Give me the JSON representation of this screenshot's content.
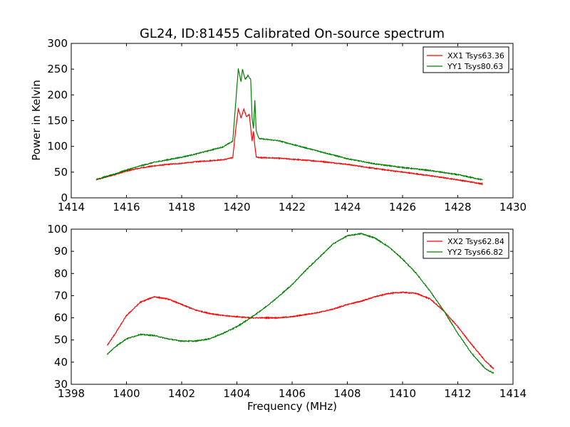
{
  "figure": {
    "title": "GL24, ID:81455 Calibrated On-source spectrum",
    "top_ylabel": "Power in Kelvin",
    "bottom_xlabel": "Frequency (MHz)"
  },
  "chart_data": [
    {
      "type": "line",
      "title": "GL24, ID:81455 Calibrated On-source spectrum",
      "xlabel": "",
      "ylabel": "Power in Kelvin",
      "xlim": [
        1414,
        1430
      ],
      "ylim": [
        0,
        300
      ],
      "xticks": [
        1414,
        1416,
        1418,
        1420,
        1422,
        1424,
        1426,
        1428,
        1430
      ],
      "yticks": [
        0,
        50,
        100,
        150,
        200,
        250,
        300
      ],
      "legend_position": "top-right",
      "grid": false,
      "series": [
        {
          "name": "XX1 Tsys63.36",
          "color": "#ff0000",
          "x": [
            1414.9,
            1415.5,
            1416.0,
            1416.5,
            1417.0,
            1417.5,
            1418.0,
            1418.5,
            1419.0,
            1419.5,
            1419.85,
            1419.95,
            1420.05,
            1420.15,
            1420.25,
            1420.35,
            1420.45,
            1420.55,
            1420.6,
            1420.65,
            1420.7,
            1420.8,
            1421.0,
            1421.5,
            1422.0,
            1423.0,
            1424.0,
            1425.0,
            1426.0,
            1427.0,
            1428.0,
            1428.9
          ],
          "y": [
            35,
            44,
            52,
            58,
            62,
            65,
            67,
            70,
            72,
            74,
            78,
            130,
            173,
            155,
            172,
            158,
            162,
            110,
            130,
            100,
            80,
            78,
            78,
            77,
            75,
            71,
            65,
            57,
            50,
            43,
            35,
            27
          ]
        },
        {
          "name": "YY1 Tsys80.63",
          "color": "#008000",
          "x": [
            1414.9,
            1415.5,
            1416.0,
            1416.5,
            1417.0,
            1417.5,
            1418.0,
            1418.5,
            1419.0,
            1419.5,
            1419.85,
            1419.95,
            1420.05,
            1420.15,
            1420.2,
            1420.3,
            1420.4,
            1420.5,
            1420.55,
            1420.6,
            1420.65,
            1420.7,
            1420.8,
            1421.0,
            1421.5,
            1422.0,
            1423.0,
            1424.0,
            1425.0,
            1426.0,
            1427.0,
            1428.0,
            1428.9
          ],
          "y": [
            36,
            45,
            54,
            62,
            69,
            74,
            79,
            85,
            92,
            99,
            110,
            180,
            251,
            225,
            250,
            230,
            238,
            230,
            155,
            135,
            190,
            130,
            115,
            114,
            111,
            104,
            90,
            76,
            66,
            59,
            53,
            45,
            35
          ]
        }
      ]
    },
    {
      "type": "line",
      "title": "",
      "xlabel": "Frequency (MHz)",
      "ylabel": "",
      "xlim": [
        1398,
        1414
      ],
      "ylim": [
        30,
        100
      ],
      "xticks": [
        1398,
        1400,
        1402,
        1404,
        1406,
        1408,
        1410,
        1412,
        1414
      ],
      "yticks": [
        30,
        40,
        50,
        60,
        70,
        80,
        90,
        100
      ],
      "legend_position": "top-right",
      "grid": false,
      "series": [
        {
          "name": "XX2 Tsys62.84",
          "color": "#ff0000",
          "x": [
            1399.3,
            1399.6,
            1400.0,
            1400.5,
            1401.0,
            1401.5,
            1402.0,
            1402.5,
            1403.0,
            1403.5,
            1404.0,
            1404.5,
            1405.0,
            1405.5,
            1406.0,
            1406.5,
            1407.0,
            1407.5,
            1408.0,
            1408.5,
            1409.0,
            1409.5,
            1410.0,
            1410.5,
            1411.0,
            1411.5,
            1412.0,
            1412.5,
            1413.0,
            1413.3
          ],
          "y": [
            47.5,
            53,
            61,
            67,
            69.5,
            68.5,
            66,
            63.5,
            62,
            61,
            60.5,
            60,
            60,
            60,
            60.5,
            61.5,
            62.5,
            64,
            66,
            67.5,
            69.5,
            71,
            71.5,
            71,
            68.5,
            63,
            56,
            48,
            40.5,
            37
          ]
        },
        {
          "name": "YY2 Tsys66.82",
          "color": "#008000",
          "x": [
            1399.3,
            1399.6,
            1400.0,
            1400.5,
            1401.0,
            1401.5,
            1402.0,
            1402.5,
            1403.0,
            1403.5,
            1404.0,
            1404.5,
            1405.0,
            1405.5,
            1406.0,
            1406.5,
            1407.0,
            1407.5,
            1408.0,
            1408.5,
            1409.0,
            1409.5,
            1410.0,
            1410.5,
            1411.0,
            1411.5,
            1412.0,
            1412.5,
            1413.0,
            1413.3
          ],
          "y": [
            43.5,
            47,
            50.5,
            52.5,
            52,
            50.5,
            49.5,
            49.5,
            50.5,
            53,
            56,
            60,
            64.5,
            69.5,
            75,
            81.5,
            87.5,
            93.5,
            97,
            98,
            96,
            92,
            86.5,
            80,
            72,
            63,
            53,
            44,
            37,
            35
          ]
        }
      ]
    }
  ]
}
